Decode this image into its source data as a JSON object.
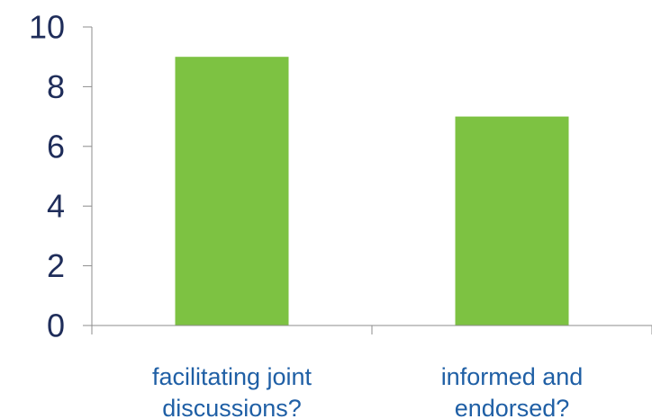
{
  "chart_data": {
    "type": "bar",
    "categories": [
      [
        "facilitating joint",
        "discussions?"
      ],
      [
        "informed and",
        "endorsed?"
      ]
    ],
    "values": [
      9,
      7
    ],
    "ylim": [
      0,
      10
    ],
    "yticks": [
      "0",
      "2",
      "4",
      "6",
      "8",
      "10"
    ],
    "title": "",
    "xlabel": "",
    "ylabel": "",
    "grid": false,
    "legend": "none",
    "colors": {
      "bar": "#7dc242",
      "tick_text": "#1f2d5a",
      "category_text": "#1f5fa5",
      "axis": "#8c8c8c"
    }
  }
}
